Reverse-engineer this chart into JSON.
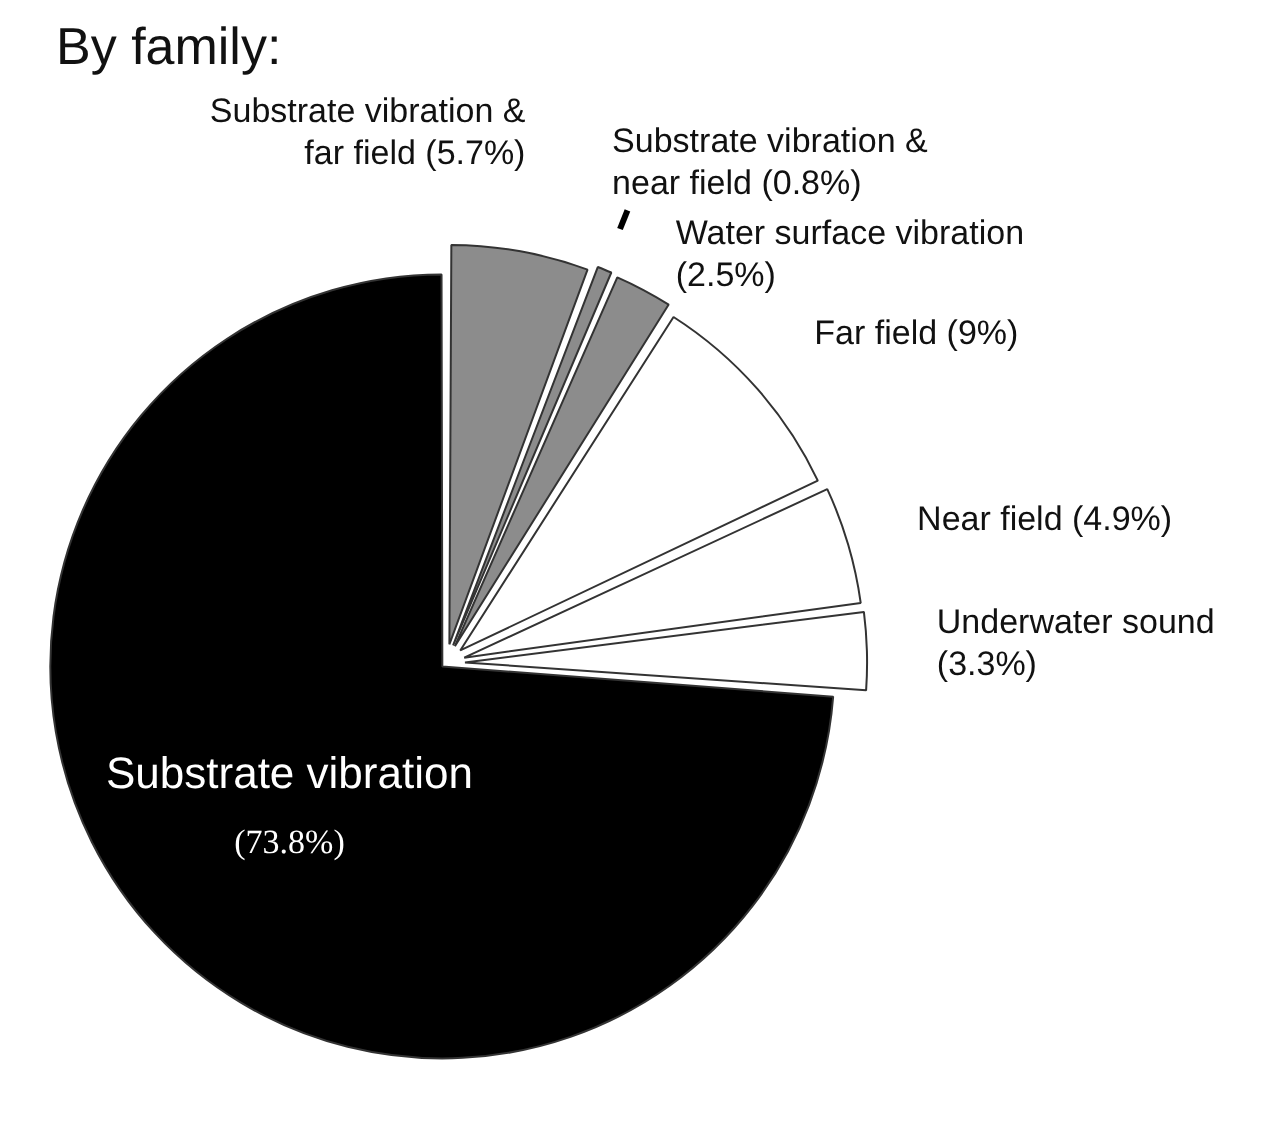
{
  "chart_data": {
    "type": "pie",
    "title": "By family:",
    "categories": [
      "Substrate vibration & far field",
      "Substrate vibration & near field",
      "Water surface vibration",
      "Far field",
      "Near field",
      "Underwater sound",
      "Substrate vibration"
    ],
    "values": [
      5.7,
      0.8,
      2.5,
      9,
      4.9,
      3.3,
      73.8
    ],
    "value_labels": [
      "(5.7%)",
      "(0.8%)",
      "(2.5%)",
      "(9%)",
      "(4.9%)",
      "(3.3%)",
      "(73.8%)"
    ],
    "colors": [
      "#8c8c8c",
      "#8c8c8c",
      "#8c8c8c",
      "#ffffff",
      "#ffffff",
      "#ffffff",
      "#000000"
    ],
    "legend": false
  }
}
